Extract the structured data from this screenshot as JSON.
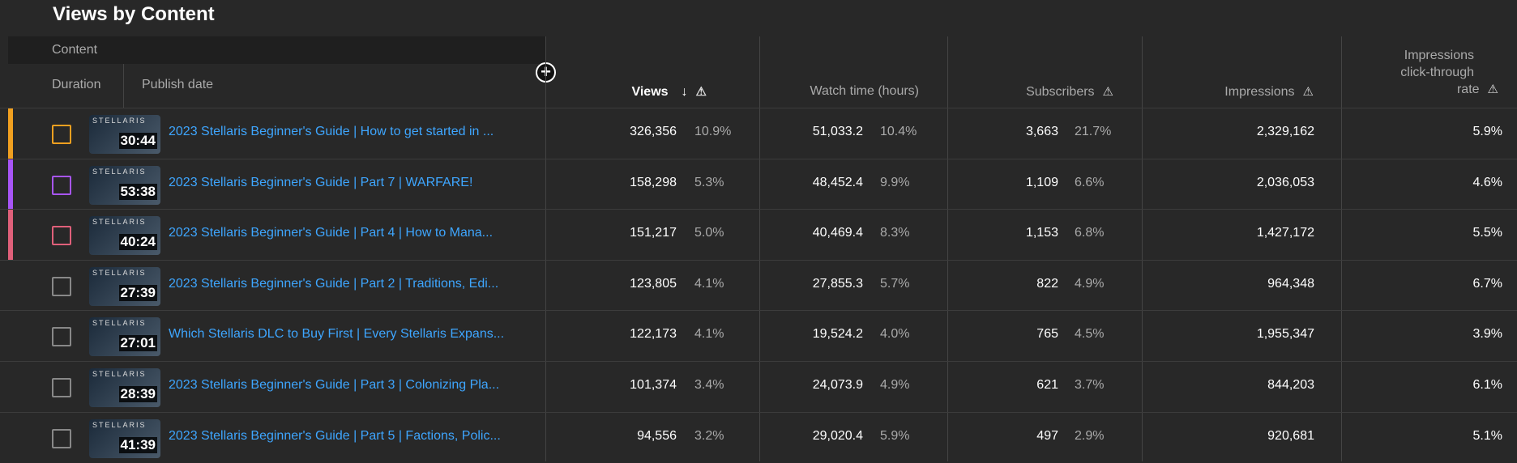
{
  "title": "Views by Content",
  "header": {
    "content": "Content",
    "duration": "Duration",
    "publish_date": "Publish date",
    "views": "Views",
    "watch_time": "Watch time (hours)",
    "subscribers": "Subscribers",
    "impressions": "Impressions",
    "ctr_line1": "Impressions",
    "ctr_line2": "click-through",
    "ctr_line3": "rate"
  },
  "icons": {
    "sort": "arrow-down-icon",
    "warning": "warning-icon",
    "add": "plus-circle-icon"
  },
  "rows": [
    {
      "color": "#f0a020",
      "thumb": "STELLARIS",
      "duration": "30:44",
      "title": "2023 Stellaris Beginner's Guide | How to get started in ...",
      "views": "326,356",
      "views_pct": "10.9%",
      "watch": "51,033.2",
      "watch_pct": "10.4%",
      "subs": "3,663",
      "subs_pct": "21.7%",
      "impr": "2,329,162",
      "ctr": "5.9%"
    },
    {
      "color": "#a855f7",
      "thumb": "STELLARIS",
      "duration": "53:38",
      "title": "2023 Stellaris Beginner's Guide | Part 7 | WARFARE!",
      "views": "158,298",
      "views_pct": "5.3%",
      "watch": "48,452.4",
      "watch_pct": "9.9%",
      "subs": "1,109",
      "subs_pct": "6.6%",
      "impr": "2,036,053",
      "ctr": "4.6%"
    },
    {
      "color": "#e0607a",
      "thumb": "STELLARIS",
      "duration": "40:24",
      "title": "2023 Stellaris Beginner's Guide | Part 4 | How to Mana...",
      "views": "151,217",
      "views_pct": "5.0%",
      "watch": "40,469.4",
      "watch_pct": "8.3%",
      "subs": "1,153",
      "subs_pct": "6.8%",
      "impr": "1,427,172",
      "ctr": "5.5%"
    },
    {
      "color": "",
      "thumb": "STELLARIS",
      "duration": "27:39",
      "title": "2023 Stellaris Beginner's Guide | Part 2 | Traditions, Edi...",
      "views": "123,805",
      "views_pct": "4.1%",
      "watch": "27,855.3",
      "watch_pct": "5.7%",
      "subs": "822",
      "subs_pct": "4.9%",
      "impr": "964,348",
      "ctr": "6.7%"
    },
    {
      "color": "",
      "thumb": "STELLARIS",
      "duration": "27:01",
      "title": "Which Stellaris DLC to Buy First | Every Stellaris Expans...",
      "views": "122,173",
      "views_pct": "4.1%",
      "watch": "19,524.2",
      "watch_pct": "4.0%",
      "subs": "765",
      "subs_pct": "4.5%",
      "impr": "1,955,347",
      "ctr": "3.9%"
    },
    {
      "color": "",
      "thumb": "STELLARIS",
      "duration": "28:39",
      "title": "2023 Stellaris Beginner's Guide | Part 3 | Colonizing Pla...",
      "views": "101,374",
      "views_pct": "3.4%",
      "watch": "24,073.9",
      "watch_pct": "4.9%",
      "subs": "621",
      "subs_pct": "3.7%",
      "impr": "844,203",
      "ctr": "6.1%"
    },
    {
      "color": "",
      "thumb": "STELLARIS",
      "duration": "41:39",
      "title": "2023 Stellaris Beginner's Guide | Part 5 | Factions, Polic...",
      "views": "94,556",
      "views_pct": "3.2%",
      "watch": "29,020.4",
      "watch_pct": "5.9%",
      "subs": "497",
      "subs_pct": "2.9%",
      "impr": "920,681",
      "ctr": "5.1%"
    }
  ]
}
